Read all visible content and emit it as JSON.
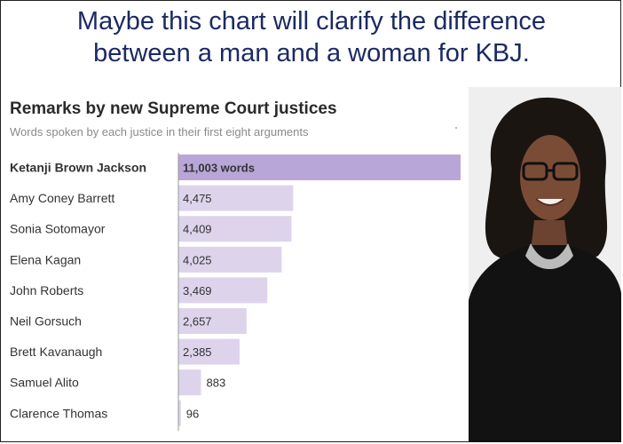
{
  "caption": {
    "line1": "Maybe this chart will clarify the difference",
    "line2": "between a man and a woman for KBJ."
  },
  "chart_data": {
    "type": "bar",
    "orientation": "horizontal",
    "title": "Remarks by new Supreme Court justices",
    "subtitle": "Words spoken by each justice in their first eight arguments",
    "categories": [
      "Ketanji Brown Jackson",
      "Amy Coney Barrett",
      "Sonia Sotomayor",
      "Elena Kagan",
      "John Roberts",
      "Neil Gorsuch",
      "Brett Kavanaugh",
      "Samuel Alito",
      "Clarence Thomas"
    ],
    "values": [
      11003,
      4475,
      4409,
      4025,
      3469,
      2657,
      2385,
      883,
      96
    ],
    "value_labels": [
      "11,003 words",
      "4,475",
      "4,409",
      "4,025",
      "3,469",
      "2,657",
      "2,385",
      "883",
      "96"
    ],
    "xlim": [
      0,
      11003
    ],
    "highlight_index": 0,
    "grid": false,
    "legend": "none",
    "colors": {
      "highlight": "#b9a6d8",
      "bar": "#ddd4ec",
      "axis": "#999999",
      "label": "#333333"
    }
  },
  "photo": {
    "subject": "portrait-photo"
  }
}
